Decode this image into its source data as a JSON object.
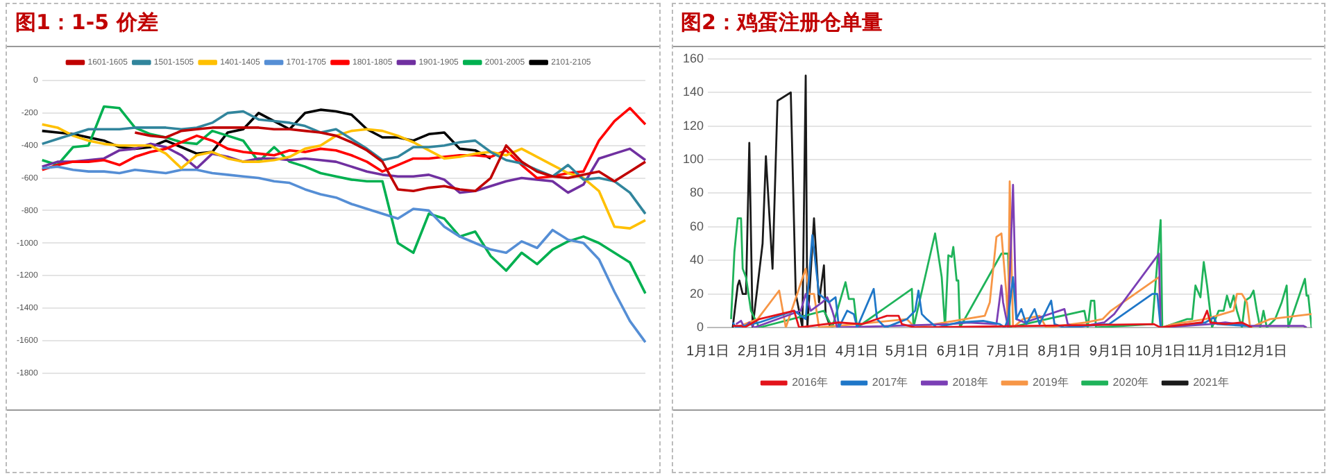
{
  "chart_data": [
    {
      "type": "line",
      "title": "图1：1-5 价差",
      "categories": [
        null,
        null,
        null,
        null,
        null,
        null,
        null,
        null,
        null,
        null,
        null,
        null,
        null,
        null,
        null,
        null,
        null,
        null,
        null,
        null,
        null,
        null,
        null,
        null,
        null,
        null,
        null,
        null,
        null,
        null,
        null,
        null,
        null,
        null,
        null,
        null,
        null,
        null,
        null,
        null
      ],
      "ylim": [
        -1800,
        0
      ],
      "yticks": [
        0,
        -200,
        -400,
        -600,
        -800,
        -1000,
        -1200,
        -1400,
        -1600,
        -1800
      ],
      "grid": "y",
      "legend": "top",
      "marker": "none",
      "series": [
        {
          "name": "1601-1605",
          "color": "#c00000",
          "values": [
            null,
            null,
            null,
            null,
            null,
            null,
            -320,
            -340,
            -350,
            -310,
            -300,
            -290,
            -290,
            -290,
            -290,
            -300,
            -300,
            -310,
            -320,
            -340,
            -380,
            -430,
            -500,
            -670,
            -680,
            -660,
            -650,
            -670,
            -680,
            -600,
            -400,
            -500,
            -560,
            -590,
            -600,
            -580,
            -560,
            -620,
            -560,
            -500
          ]
        },
        {
          "name": "1501-1505",
          "color": "#31859c",
          "values": [
            -390,
            -360,
            -330,
            -300,
            -300,
            -300,
            -290,
            -290,
            -290,
            -300,
            -290,
            -260,
            -200,
            -190,
            -240,
            -250,
            -260,
            -280,
            -320,
            -300,
            -360,
            -420,
            -490,
            -470,
            -410,
            -410,
            -400,
            -380,
            -370,
            -440,
            -490,
            -510,
            -550,
            -590,
            -520,
            -610,
            -600,
            -620,
            -690,
            -820
          ]
        },
        {
          "name": "1401-1405",
          "color": "#ffc000",
          "values": [
            -270,
            -290,
            -340,
            -370,
            -390,
            -400,
            -400,
            -400,
            -450,
            -540,
            -460,
            -440,
            -480,
            -500,
            -500,
            -490,
            -470,
            -420,
            -400,
            -340,
            -310,
            -300,
            -310,
            -340,
            -380,
            -430,
            -480,
            -470,
            -450,
            -440,
            -460,
            -420,
            -470,
            -520,
            -570,
            -600,
            -680,
            -900,
            -910,
            -860
          ]
        },
        {
          "name": "1701-1705",
          "color": "#558ed5",
          "values": [
            -540,
            -530,
            -550,
            -560,
            -560,
            -570,
            -550,
            -560,
            -570,
            -550,
            -550,
            -570,
            -580,
            -590,
            -600,
            -620,
            -630,
            -670,
            -700,
            -720,
            -760,
            -790,
            -820,
            -850,
            -790,
            -800,
            -900,
            -960,
            -1000,
            -1040,
            -1060,
            -990,
            -1030,
            -920,
            -980,
            -1000,
            -1100,
            -1300,
            -1480,
            -1610
          ]
        },
        {
          "name": "1801-1805",
          "color": "#ff0000",
          "values": [
            -550,
            -520,
            -500,
            -500,
            -490,
            -520,
            -470,
            -440,
            -420,
            -380,
            -340,
            -370,
            -420,
            -440,
            -450,
            -460,
            -430,
            -440,
            -420,
            -430,
            -460,
            -500,
            -560,
            -520,
            -480,
            -480,
            -470,
            -460,
            -460,
            -470,
            -430,
            -520,
            -600,
            -590,
            -570,
            -560,
            -370,
            -250,
            -170,
            -270
          ]
        },
        {
          "name": "1901-1905",
          "color": "#7030a0",
          "values": [
            -530,
            -500,
            -500,
            -490,
            -480,
            -430,
            -420,
            -390,
            -410,
            -460,
            -540,
            -450,
            -470,
            -500,
            -480,
            -480,
            -490,
            -480,
            -490,
            -500,
            -530,
            -560,
            -580,
            -590,
            -590,
            -580,
            -610,
            -690,
            -680,
            -650,
            -620,
            -600,
            -610,
            -620,
            -690,
            -640,
            -480,
            -450,
            -420,
            -490
          ]
        },
        {
          "name": "2001-2005",
          "color": "#00b050",
          "values": [
            -490,
            -520,
            -410,
            -400,
            -160,
            -170,
            -290,
            -330,
            -350,
            -380,
            -390,
            -310,
            -340,
            -370,
            -500,
            -410,
            -500,
            -530,
            -570,
            -590,
            -610,
            -620,
            -620,
            -1000,
            -1060,
            -820,
            -850,
            -960,
            -930,
            -1080,
            -1170,
            -1060,
            -1130,
            -1040,
            -990,
            -960,
            -1000,
            -1060,
            -1120,
            -1310
          ]
        },
        {
          "name": "2101-2105",
          "color": "#000000",
          "values": [
            -310,
            -320,
            -330,
            -350,
            -370,
            -410,
            -420,
            -410,
            -370,
            -410,
            -450,
            -440,
            -320,
            -300,
            -200,
            -250,
            -300,
            -200,
            -180,
            -190,
            -210,
            -300,
            -350,
            -350,
            -370,
            -330,
            -320,
            -420,
            -430,
            -480,
            null,
            null,
            null,
            null,
            null,
            null,
            null,
            null,
            null,
            null
          ]
        }
      ]
    },
    {
      "type": "line",
      "title": "图2：鸡蛋注册仓单量",
      "xlim": [
        "--01-01",
        "--12-31"
      ],
      "xticks": [
        {
          "value": "--01-01",
          "label": "1月1日"
        },
        {
          "value": "--02-01",
          "label": "2月1日"
        },
        {
          "value": "--03-01",
          "label": "3月1日"
        },
        {
          "value": "--04-01",
          "label": "4月1日"
        },
        {
          "value": "--05-01",
          "label": "5月1日"
        },
        {
          "value": "--06-01",
          "label": "6月1日"
        },
        {
          "value": "--07-01",
          "label": "7月1日"
        },
        {
          "value": "--08-01",
          "label": "8月1日"
        },
        {
          "value": "--09-01",
          "label": "9月1日"
        },
        {
          "value": "--10-01",
          "label": "10月1日"
        },
        {
          "value": "--11-01",
          "label": "11月1日"
        },
        {
          "value": "--12-01",
          "label": "12月1日"
        }
      ],
      "ylim": [
        0,
        160
      ],
      "yticks": [
        0,
        20,
        40,
        60,
        80,
        100,
        120,
        140,
        160
      ],
      "grid": "y",
      "legend": "bottom",
      "marker": "none",
      "series": [
        {
          "name": "2016年",
          "color": "#e3131b",
          "x": [
            "--01-16",
            "--01-21",
            "--01-23",
            "--02-01",
            "--02-22",
            "--02-25",
            "--03-21",
            "--04-04",
            "--04-19",
            "--04-26",
            "--04-28",
            "--05-06",
            "--09-27",
            "--10-01",
            "--10-26",
            "--10-29",
            "--10-31",
            "--11-09",
            "--11-19",
            "--11-25"
          ],
          "values": [
            1,
            1,
            0,
            5,
            10,
            0,
            3,
            2,
            7,
            7,
            2,
            0,
            2,
            0,
            3,
            10,
            3,
            2,
            3,
            0
          ]
        },
        {
          "name": "2017年",
          "color": "#1f77c8",
          "x": [
            "--01-16",
            "--01-18",
            "--02-01",
            "--02-22",
            "--03-01",
            "--03-05",
            "--03-09",
            "--03-15",
            "--03-19",
            "--03-21",
            "--03-26",
            "--03-30",
            "--04-01",
            "--04-11",
            "--04-13",
            "--04-18",
            "--05-01",
            "--05-06",
            "--05-08",
            "--05-10",
            "--05-13",
            "--05-19",
            "--06-01",
            "--06-16",
            "--06-26",
            "--06-29",
            "--07-01",
            "--07-04",
            "--07-06",
            "--07-09",
            "--07-12",
            "--07-17",
            "--07-20",
            "--07-27",
            "--07-29",
            "--08-04",
            "--08-31",
            "--09-26",
            "--09-29",
            "--10-01",
            "--10-28",
            "--11-02",
            "--11-04",
            "--11-22",
            "--11-25"
          ],
          "values": [
            3,
            0,
            3,
            10,
            5,
            55,
            20,
            15,
            18,
            0,
            10,
            8,
            0,
            23,
            5,
            0,
            5,
            10,
            22,
            8,
            5,
            0,
            3,
            4,
            2,
            0,
            5,
            30,
            5,
            11,
            2,
            11,
            2,
            16,
            2,
            0,
            2,
            20,
            20,
            0,
            3,
            6,
            2,
            1,
            0
          ]
        },
        {
          "name": "2018年",
          "color": "#7b3fb5",
          "x": [
            "--01-18",
            "--01-21",
            "--01-23",
            "--01-26",
            "--01-29",
            "--02-26",
            "--03-01",
            "--03-04",
            "--03-11",
            "--03-14",
            "--03-17",
            "--03-20",
            "--05-27",
            "--06-07",
            "--06-24",
            "--06-27",
            "--06-28",
            "--07-01",
            "--07-04",
            "--07-06",
            "--07-11",
            "--08-04",
            "--08-06",
            "--08-11",
            "--08-28",
            "--09-03",
            "--09-27",
            "--09-30",
            "--10-01",
            "--10-31",
            "--11-09",
            "--11-24",
            "--12-26",
            "--12-28"
          ],
          "values": [
            2,
            4,
            0,
            3,
            0,
            10,
            20,
            10,
            15,
            18,
            10,
            0,
            2,
            3,
            2,
            25,
            15,
            0,
            85,
            5,
            3,
            11,
            2,
            0,
            3,
            8,
            40,
            44,
            0,
            2,
            3,
            1,
            1,
            0
          ]
        },
        {
          "name": "2019年",
          "color": "#f79646",
          "x": [
            "--01-18",
            "--01-31",
            "--02-13",
            "--02-17",
            "--03-01",
            "--03-03",
            "--03-06",
            "--03-09",
            "--04-01",
            "--05-01",
            "--05-06",
            "--06-17",
            "--06-20",
            "--06-24",
            "--06-27",
            "--06-30",
            "--07-01",
            "--07-02",
            "--07-04",
            "--07-10",
            "--07-20",
            "--07-24",
            "--08-17",
            "--08-27",
            "--09-01",
            "--09-30",
            "--10-01",
            "--10-09",
            "--10-28",
            "--11-14",
            "--11-16",
            "--11-19",
            "--11-22",
            "--11-24",
            "--12-06",
            "--12-31"
          ],
          "values": [
            0,
            5,
            22,
            0,
            35,
            20,
            20,
            0,
            2,
            5,
            0,
            7,
            15,
            54,
            56,
            20,
            0,
            87,
            0,
            5,
            7,
            0,
            3,
            5,
            10,
            30,
            0,
            2,
            5,
            10,
            20,
            20,
            15,
            0,
            5,
            8
          ]
        },
        {
          "name": "2020年",
          "color": "#1fb35a",
          "x": [
            "--01-15",
            "--01-17",
            "--01-19",
            "--01-21",
            "--01-22",
            "--01-24",
            "--01-27",
            "--02-01",
            "--03-12",
            "--03-17",
            "--03-25",
            "--03-27",
            "--03-30",
            "--04-01",
            "--05-04",
            "--05-05",
            "--05-18",
            "--05-22",
            "--05-24",
            "--05-26",
            "--05-28",
            "--05-29",
            "--05-31",
            "--06-01",
            "--06-02",
            "--06-27",
            "--07-01",
            "--07-02",
            "--08-16",
            "--08-18",
            "--08-20",
            "--08-22",
            "--08-23",
            "--09-26",
            "--10-01",
            "--10-02",
            "--10-17",
            "--10-20",
            "--10-22",
            "--10-25",
            "--10-27",
            "--10-29",
            "--11-01",
            "--11-05",
            "--11-08",
            "--11-10",
            "--11-12",
            "--11-14",
            "--11-16",
            "--11-19",
            "--11-21",
            "--11-24",
            "--11-26",
            "--11-28",
            "--11-30",
            "--12-02",
            "--12-04",
            "--12-09",
            "--12-13",
            "--12-16",
            "--12-17",
            "--12-27",
            "--12-28",
            "--12-29",
            "--12-31"
          ],
          "values": [
            5,
            45,
            65,
            65,
            35,
            30,
            10,
            0,
            10,
            0,
            27,
            17,
            17,
            0,
            23,
            0,
            56,
            30,
            0,
            43,
            42,
            48,
            28,
            28,
            0,
            44,
            44,
            0,
            10,
            0,
            16,
            16,
            0,
            2,
            64,
            0,
            5,
            5,
            25,
            18,
            39,
            25,
            0,
            10,
            10,
            19,
            12,
            19,
            10,
            0,
            16,
            18,
            22,
            10,
            0,
            10,
            0,
            5,
            15,
            25,
            0,
            29,
            19,
            19,
            0
          ]
        },
        {
          "name": "2021年",
          "color": "#1a1a1a",
          "x": [
            "--01-16",
            "--01-19",
            "--01-20",
            "--01-22",
            "--01-24",
            "--01-26",
            "--01-28",
            "--02-03",
            "--02-05",
            "--02-09",
            "--02-12",
            "--02-20",
            "--02-23",
            "--02-27",
            "--03-01",
            "--03-02",
            "--03-06",
            "--03-09",
            "--03-12",
            "--03-13",
            "--03-16"
          ],
          "values": [
            0,
            25,
            28,
            20,
            20,
            110,
            0,
            50,
            102,
            35,
            135,
            140,
            20,
            0,
            150,
            0,
            65,
            15,
            37,
            8,
            0
          ]
        }
      ]
    }
  ]
}
